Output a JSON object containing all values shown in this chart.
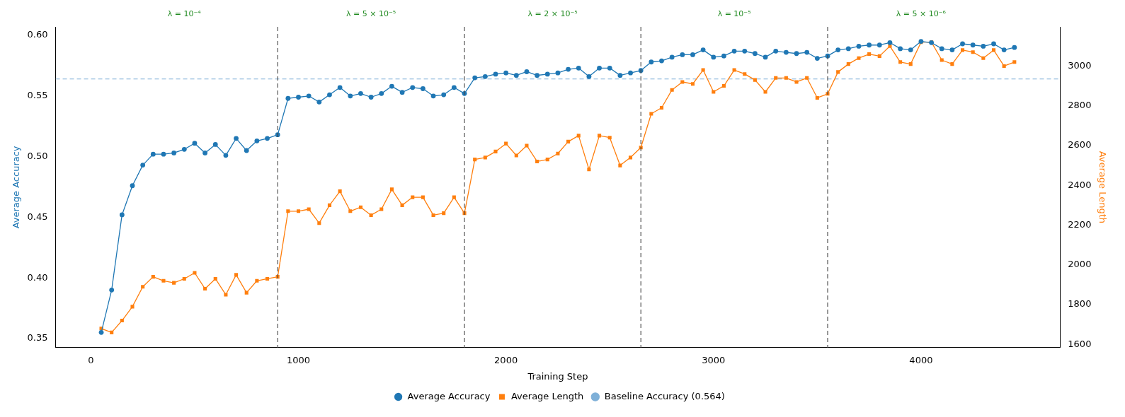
{
  "chart_data": {
    "type": "line",
    "xlabel": "Training Step",
    "ylabel": "Average Accuracy",
    "y2label": "Average Length",
    "x": [
      50,
      100,
      150,
      200,
      250,
      300,
      350,
      400,
      450,
      500,
      550,
      600,
      650,
      700,
      750,
      800,
      850,
      900,
      950,
      1000,
      1050,
      1100,
      1150,
      1200,
      1250,
      1300,
      1350,
      1400,
      1450,
      1500,
      1550,
      1600,
      1650,
      1700,
      1750,
      1800,
      1850,
      1900,
      1950,
      2000,
      2050,
      2100,
      2150,
      2200,
      2250,
      2300,
      2350,
      2400,
      2450,
      2500,
      2550,
      2600,
      2650,
      2700,
      2750,
      2800,
      2850,
      2900,
      2950,
      3000,
      3050,
      3100,
      3150,
      3200,
      3250,
      3300,
      3350,
      3400,
      3450,
      3500,
      3550,
      3600,
      3650,
      3700,
      3750,
      3800,
      3850,
      3900,
      3950,
      4000,
      4050,
      4100,
      4150,
      4200,
      4250,
      4300,
      4350,
      4400,
      4450
    ],
    "series": [
      {
        "name": "Average Accuracy",
        "color": "#1f77b4",
        "marker": "circle",
        "values": [
          0.355,
          0.39,
          0.452,
          0.476,
          0.493,
          0.502,
          0.502,
          0.503,
          0.506,
          0.511,
          0.503,
          0.51,
          0.501,
          0.515,
          0.505,
          0.513,
          0.515,
          0.518,
          0.548,
          0.549,
          0.55,
          0.545,
          0.551,
          0.557,
          0.55,
          0.552,
          0.549,
          0.552,
          0.558,
          0.553,
          0.557,
          0.556,
          0.55,
          0.551,
          0.557,
          0.552,
          0.565,
          0.566,
          0.568,
          0.569,
          0.567,
          0.57,
          0.567,
          0.568,
          0.569,
          0.572,
          0.573,
          0.566,
          0.573,
          0.573,
          0.567,
          0.569,
          0.571,
          0.578,
          0.579,
          0.582,
          0.584,
          0.584,
          0.588,
          0.582,
          0.583,
          0.587,
          0.587,
          0.585,
          0.582,
          0.587,
          0.586,
          0.585,
          0.586,
          0.581,
          0.583,
          0.588,
          0.589,
          0.591,
          0.592,
          0.592,
          0.594,
          0.589,
          0.588,
          0.595,
          0.594,
          0.589,
          0.588,
          0.593,
          0.592,
          0.591,
          0.593,
          0.588,
          0.59
        ]
      },
      {
        "name": "Average Length",
        "color": "#ff7f0e",
        "marker": "square",
        "axis": "y2",
        "values": [
          1680,
          1660,
          1720,
          1790,
          1890,
          1940,
          1920,
          1910,
          1930,
          1960,
          1880,
          1930,
          1850,
          1950,
          1860,
          1920,
          1930,
          1940,
          2270,
          2270,
          2280,
          2210,
          2300,
          2370,
          2270,
          2290,
          2250,
          2280,
          2380,
          2300,
          2340,
          2340,
          2250,
          2260,
          2340,
          2260,
          2530,
          2540,
          2570,
          2610,
          2550,
          2600,
          2520,
          2530,
          2560,
          2620,
          2650,
          2480,
          2650,
          2640,
          2500,
          2540,
          2590,
          2760,
          2790,
          2880,
          2920,
          2910,
          2980,
          2870,
          2900,
          2980,
          2960,
          2930,
          2870,
          2940,
          2940,
          2920,
          2940,
          2840,
          2860,
          2970,
          3010,
          3040,
          3060,
          3050,
          3100,
          3020,
          3010,
          3120,
          3120,
          3030,
          3010,
          3080,
          3070,
          3040,
          3080,
          3000,
          3020
        ]
      }
    ],
    "xlim": [
      -170,
      4670
    ],
    "xticks": [
      0,
      1000,
      2000,
      3000,
      4000
    ],
    "ylim": [
      0.3425,
      0.607
    ],
    "yticks": [
      0.35,
      {
        "value": 0.4,
        "label": "0.40"
      },
      0.45,
      {
        "value": 0.5,
        "label": "0.50"
      },
      0.55,
      {
        "value": 0.6,
        "label": "0.60"
      }
    ],
    "y2lim": [
      1584,
      3197
    ],
    "y2ticks": [
      1600,
      1800,
      2000,
      2200,
      2400,
      2600,
      2800,
      3000
    ],
    "ref_lines": [
      {
        "axis": "y",
        "value": 0.564,
        "label": "Baseline Accuracy (0.564)",
        "color": "#7fb0d8",
        "line_style": "dashed"
      },
      {
        "axis": "x",
        "value": 900,
        "color": "#444444",
        "line_style": "dashed"
      },
      {
        "axis": "x",
        "value": 1800,
        "color": "#444444",
        "line_style": "dashed"
      },
      {
        "axis": "x",
        "value": 2650,
        "color": "#444444",
        "line_style": "dashed"
      },
      {
        "axis": "x",
        "value": 3550,
        "color": "#444444",
        "line_style": "dashed"
      }
    ],
    "annotations": [
      "λ = 10⁻⁴",
      "λ = 5 × 10⁻⁵",
      "λ = 2 × 10⁻⁵",
      "λ = 10⁻⁵",
      "λ = 5 × 10⁻⁶"
    ],
    "legend": "bottom",
    "grid": false
  }
}
